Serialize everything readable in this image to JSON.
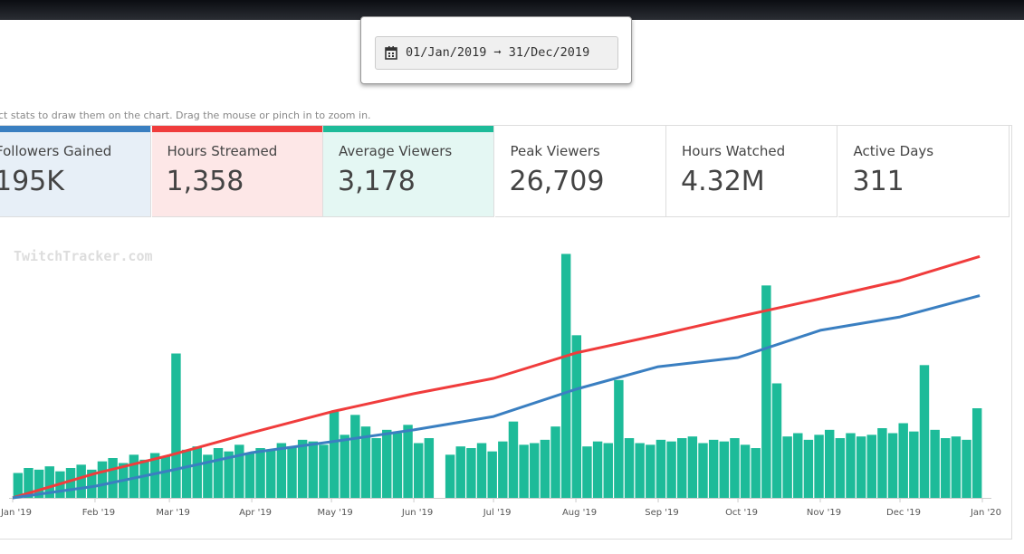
{
  "date_range": "01/Jan/2019 ➞ 31/Dec/2019",
  "hint": "ct stats to draw them on the chart. Drag the mouse or pinch in to zoom in.",
  "stats": [
    {
      "label": "Followers Gained",
      "value": "195K",
      "color": "#3a7fc1"
    },
    {
      "label": "Hours Streamed",
      "value": "1,358",
      "color": "#f03c3c"
    },
    {
      "label": "Average Viewers",
      "value": "3,178",
      "color": "#1dbb99"
    },
    {
      "label": "Peak Viewers",
      "value": "26,709"
    },
    {
      "label": "Hours Watched",
      "value": "4.32M"
    },
    {
      "label": "Active Days",
      "value": "311"
    }
  ],
  "watermark": "TwitchTracker.com",
  "chart_data": {
    "type": "combo",
    "xlim": [
      0,
      365
    ],
    "xticks": [
      {
        "value": 0,
        "label": "Jan '19"
      },
      {
        "value": 31,
        "label": "Feb '19"
      },
      {
        "value": 59,
        "label": "Mar '19"
      },
      {
        "value": 90,
        "label": "Apr '19"
      },
      {
        "value": 120,
        "label": "May '19"
      },
      {
        "value": 151,
        "label": "Jun '19"
      },
      {
        "value": 181,
        "label": "Jul '19"
      },
      {
        "value": 212,
        "label": "Aug '19"
      },
      {
        "value": 243,
        "label": "Sep '19"
      },
      {
        "value": 273,
        "label": "Oct '19"
      },
      {
        "value": 304,
        "label": "Nov '19"
      },
      {
        "value": 334,
        "label": "Dec '19"
      },
      {
        "value": 365,
        "label": "Jan '20"
      }
    ],
    "series": [
      {
        "type": "bar",
        "color": "#1dbb99",
        "ylim": [
          0,
          15000
        ],
        "values": [
          1500,
          1800,
          1700,
          1900,
          1600,
          1800,
          2000,
          1700,
          2200,
          2400,
          2100,
          2600,
          2300,
          2700,
          2500,
          8700,
          2900,
          3100,
          2600,
          3000,
          2800,
          3200,
          2700,
          3000,
          2900,
          3300,
          3100,
          3500,
          3400,
          3200,
          5200,
          3800,
          5000,
          4300,
          3600,
          4100,
          3900,
          4400,
          3300,
          3600,
          0,
          2600,
          3100,
          3000,
          3300,
          2800,
          3400,
          4600,
          3200,
          3300,
          3500,
          4300,
          14700,
          9800,
          3100,
          3400,
          3300,
          7100,
          3600,
          3300,
          3200,
          3500,
          3400,
          3600,
          3700,
          3300,
          3500,
          3400,
          3600,
          3200,
          3000,
          12800,
          6900,
          3700,
          3900,
          3500,
          3800,
          4100,
          3600,
          3900,
          3700,
          3800,
          4200,
          3900,
          4500,
          4000,
          8000,
          4100,
          3600,
          3700,
          3500,
          5400
        ]
      },
      {
        "type": "line",
        "color": "#f03c3c",
        "ylim": [
          0,
          1400
        ],
        "x": [
          0,
          31,
          59,
          90,
          120,
          151,
          181,
          212,
          243,
          273,
          304,
          334,
          364
        ],
        "values": [
          0,
          137,
          239,
          367,
          484,
          586,
          672,
          815,
          916,
          1018,
          1120,
          1222,
          1358
        ]
      },
      {
        "type": "line",
        "color": "#3a7fc1",
        "ylim": [
          0,
          240000
        ],
        "x": [
          0,
          31,
          59,
          90,
          120,
          151,
          181,
          212,
          243,
          273,
          304,
          334,
          364
        ],
        "values": [
          0,
          11300,
          26200,
          43600,
          54100,
          65500,
          78500,
          104700,
          126500,
          135300,
          161500,
          174500,
          195000
        ]
      }
    ]
  }
}
